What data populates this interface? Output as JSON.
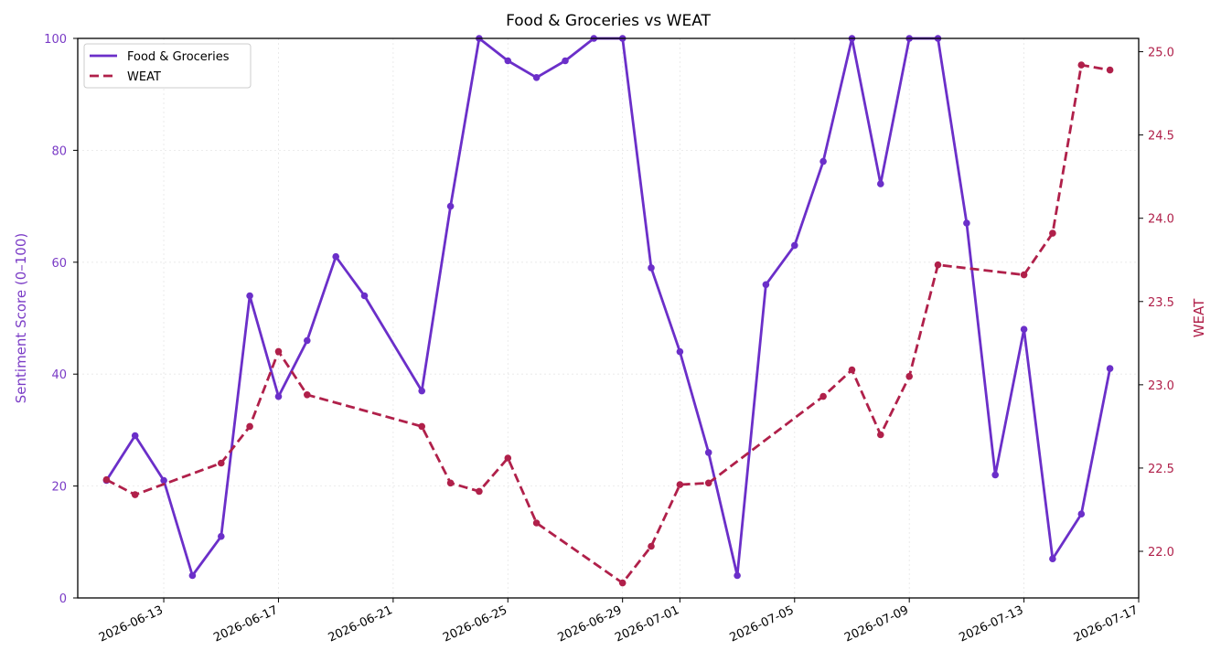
{
  "chart_data": {
    "type": "line",
    "title": "Food & Groceries vs WEAT",
    "xlabel": "",
    "y_left": {
      "label": "Sentiment Score (0–100)",
      "lim": [
        0,
        100
      ],
      "ticks": [
        "0",
        "20",
        "40",
        "60",
        "80",
        "100"
      ],
      "color": "#7A3BC6"
    },
    "y_right": {
      "label": "WEAT",
      "lim": [
        21.72,
        25.08
      ],
      "ticks": [
        "22.0",
        "22.5",
        "23.0",
        "23.5",
        "24.0",
        "24.5",
        "25.0"
      ],
      "color": "#B0204A"
    },
    "x_ticks": [
      "2026-06-13",
      "2026-06-17",
      "2026-06-21",
      "2026-06-25",
      "2026-06-29",
      "2026-07-01",
      "2026-07-05",
      "2026-07-09",
      "2026-07-13",
      "2026-07-17"
    ],
    "x_range": [
      "2026-06-10",
      "2026-07-17"
    ],
    "grid": true,
    "legend_position": "top-left",
    "series": [
      {
        "name": "Food & Groceries",
        "axis": "left",
        "style": "solid",
        "color": "#6B2FC9",
        "points": [
          [
            "2026-06-11",
            21
          ],
          [
            "2026-06-12",
            29
          ],
          [
            "2026-06-13",
            21
          ],
          [
            "2026-06-14",
            4
          ],
          [
            "2026-06-15",
            11
          ],
          [
            "2026-06-16",
            54
          ],
          [
            "2026-06-17",
            36
          ],
          [
            "2026-06-18",
            46
          ],
          [
            "2026-06-19",
            61
          ],
          [
            "2026-06-20",
            54
          ],
          [
            "2026-06-22",
            37
          ],
          [
            "2026-06-23",
            70
          ],
          [
            "2026-06-24",
            100
          ],
          [
            "2026-06-25",
            96
          ],
          [
            "2026-06-26",
            93
          ],
          [
            "2026-06-27",
            96
          ],
          [
            "2026-06-28",
            100
          ],
          [
            "2026-06-29",
            100
          ],
          [
            "2026-06-30",
            59
          ],
          [
            "2026-07-01",
            44
          ],
          [
            "2026-07-02",
            26
          ],
          [
            "2026-07-03",
            4
          ],
          [
            "2026-07-04",
            56
          ],
          [
            "2026-07-05",
            63
          ],
          [
            "2026-07-06",
            78
          ],
          [
            "2026-07-07",
            100
          ],
          [
            "2026-07-08",
            74
          ],
          [
            "2026-07-09",
            100
          ],
          [
            "2026-07-10",
            100
          ],
          [
            "2026-07-11",
            67
          ],
          [
            "2026-07-12",
            22
          ],
          [
            "2026-07-13",
            48
          ],
          [
            "2026-07-14",
            7
          ],
          [
            "2026-07-15",
            15
          ],
          [
            "2026-07-16",
            41
          ]
        ]
      },
      {
        "name": "WEAT",
        "axis": "right",
        "style": "dashed",
        "color": "#B0204A",
        "points": [
          [
            "2026-06-11",
            22.43
          ],
          [
            "2026-06-12",
            22.34
          ],
          [
            "2026-06-15",
            22.53
          ],
          [
            "2026-06-16",
            22.75
          ],
          [
            "2026-06-17",
            23.2
          ],
          [
            "2026-06-18",
            22.94
          ],
          [
            "2026-06-22",
            22.75
          ],
          [
            "2026-06-23",
            22.41
          ],
          [
            "2026-06-24",
            22.36
          ],
          [
            "2026-06-25",
            22.56
          ],
          [
            "2026-06-26",
            22.17
          ],
          [
            "2026-06-29",
            21.81
          ],
          [
            "2026-06-30",
            22.03
          ],
          [
            "2026-07-01",
            22.4
          ],
          [
            "2026-07-02",
            22.41
          ],
          [
            "2026-07-06",
            22.93
          ],
          [
            "2026-07-07",
            23.09
          ],
          [
            "2026-07-08",
            22.7
          ],
          [
            "2026-07-09",
            23.05
          ],
          [
            "2026-07-10",
            23.72
          ],
          [
            "2026-07-13",
            23.66
          ],
          [
            "2026-07-14",
            23.91
          ],
          [
            "2026-07-15",
            24.92
          ],
          [
            "2026-07-16",
            24.89
          ]
        ]
      }
    ]
  }
}
